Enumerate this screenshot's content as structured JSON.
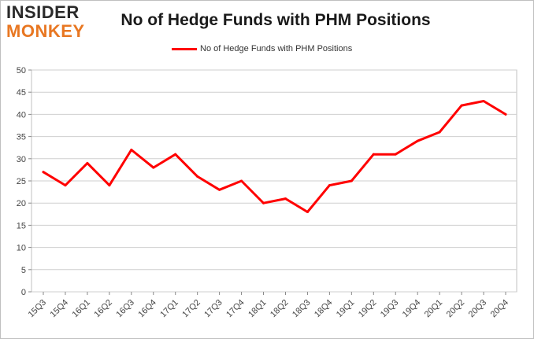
{
  "logo": {
    "line1": "INSIDER",
    "line2": "MONKEY"
  },
  "chart_data": {
    "type": "line",
    "title": "No of Hedge Funds with PHM Positions",
    "categories": [
      "15Q3",
      "15Q4",
      "16Q1",
      "16Q2",
      "16Q3",
      "16Q4",
      "17Q1",
      "17Q2",
      "17Q3",
      "17Q4",
      "18Q1",
      "18Q2",
      "18Q3",
      "18Q4",
      "19Q1",
      "19Q2",
      "19Q3",
      "19Q4",
      "20Q1",
      "20Q2",
      "20Q3",
      "20Q4"
    ],
    "series": [
      {
        "name": "No of Hedge Funds with PHM Positions",
        "color": "#ff0000",
        "values": [
          27,
          24,
          29,
          24,
          32,
          28,
          31,
          26,
          23,
          25,
          20,
          21,
          18,
          24,
          25,
          31,
          31,
          34,
          36,
          42,
          43,
          40
        ]
      }
    ],
    "ylim": [
      0,
      50
    ],
    "yticks": [
      0,
      5,
      10,
      15,
      20,
      25,
      30,
      35,
      40,
      45,
      50
    ],
    "xlabel": "",
    "ylabel": "",
    "grid": true,
    "legend_position": "top"
  }
}
